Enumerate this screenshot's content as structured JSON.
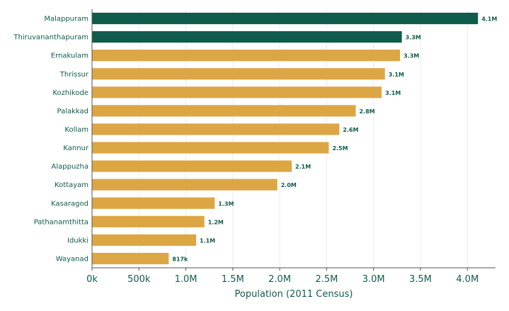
{
  "chart_data": {
    "type": "bar",
    "orientation": "horizontal",
    "xlabel": "Population (2011 Census)",
    "ylabel": "",
    "xlim": [
      0,
      4300000
    ],
    "x_ticks": [
      {
        "value": 0,
        "label": "0k"
      },
      {
        "value": 500000,
        "label": "500k"
      },
      {
        "value": 1000000,
        "label": "1.0M"
      },
      {
        "value": 1500000,
        "label": "1.5M"
      },
      {
        "value": 2000000,
        "label": "2.0M"
      },
      {
        "value": 2500000,
        "label": "2.5M"
      },
      {
        "value": 3000000,
        "label": "3.0M"
      },
      {
        "value": 3500000,
        "label": "3.5M"
      },
      {
        "value": 4000000,
        "label": "4.0M"
      }
    ],
    "grid": "vertical",
    "colors": {
      "highlight": "#0f5c4c",
      "default": "#dda645",
      "text": "#0f5c4c",
      "grid": "#ececec",
      "axis": "#555555"
    },
    "bars": [
      {
        "category": "Malappuram",
        "value": 4112920,
        "label": "4.1M",
        "highlight": true
      },
      {
        "category": "Thiruvananthapuram",
        "value": 3301427,
        "label": "3.3M",
        "highlight": true
      },
      {
        "category": "Ernakulam",
        "value": 3282388,
        "label": "3.3M",
        "highlight": false
      },
      {
        "category": "Thrissur",
        "value": 3121200,
        "label": "3.1M",
        "highlight": false
      },
      {
        "category": "Kozhikode",
        "value": 3086293,
        "label": "3.1M",
        "highlight": false
      },
      {
        "category": "Palakkad",
        "value": 2809934,
        "label": "2.8M",
        "highlight": false
      },
      {
        "category": "Kollam",
        "value": 2635375,
        "label": "2.6M",
        "highlight": false
      },
      {
        "category": "Kannur",
        "value": 2523003,
        "label": "2.5M",
        "highlight": false
      },
      {
        "category": "Alappuzha",
        "value": 2127789,
        "label": "2.1M",
        "highlight": false
      },
      {
        "category": "Kottayam",
        "value": 1974551,
        "label": "2.0M",
        "highlight": false
      },
      {
        "category": "Kasaragod",
        "value": 1307375,
        "label": "1.3M",
        "highlight": false
      },
      {
        "category": "Pathanamthitta",
        "value": 1197412,
        "label": "1.2M",
        "highlight": false
      },
      {
        "category": "Idukki",
        "value": 1108974,
        "label": "1.1M",
        "highlight": false
      },
      {
        "category": "Wayanad",
        "value": 817420,
        "label": "817k",
        "highlight": false
      }
    ]
  }
}
